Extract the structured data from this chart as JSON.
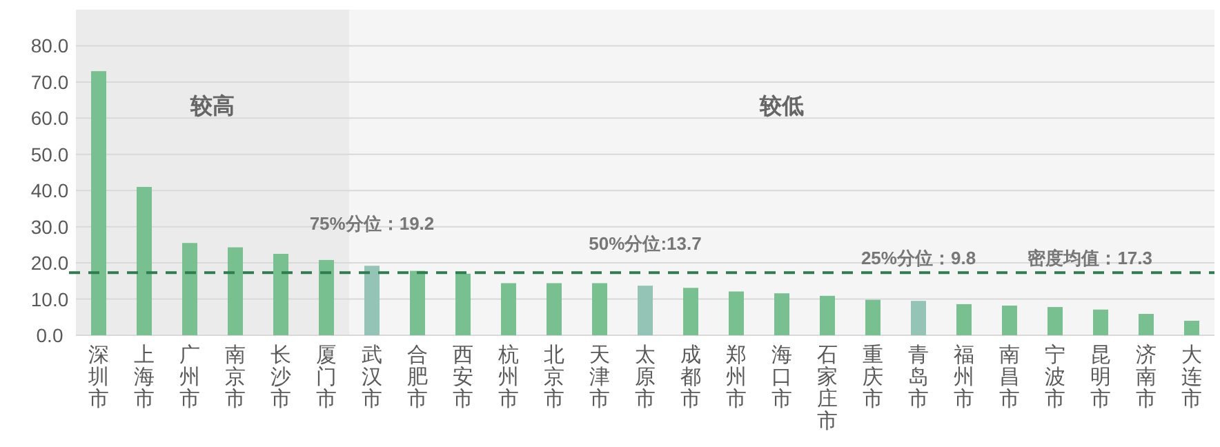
{
  "chart_data": {
    "type": "bar",
    "categories": [
      "深圳市",
      "上海市",
      "广州市",
      "南京市",
      "长沙市",
      "厦门市",
      "武汉市",
      "合肥市",
      "西安市",
      "杭州市",
      "北京市",
      "天津市",
      "太原市",
      "成都市",
      "郑州市",
      "海口市",
      "石家庄市",
      "重庆市",
      "青岛市",
      "福州市",
      "南昌市",
      "宁波市",
      "昆明市",
      "济南市",
      "大连市"
    ],
    "values": [
      73,
      41,
      25.5,
      24.3,
      22.5,
      20.8,
      19.2,
      17.8,
      17.0,
      14.4,
      14.4,
      14.4,
      13.7,
      13.1,
      12.1,
      11.6,
      10.9,
      9.8,
      9.5,
      8.6,
      8.2,
      7.8,
      7.1,
      5.9,
      4.0
    ],
    "colors": [
      "#78c08f",
      "#78c08f",
      "#78c08f",
      "#78c08f",
      "#78c08f",
      "#78c08f",
      "#93c4b5",
      "#78c08f",
      "#78c08f",
      "#78c08f",
      "#78c08f",
      "#78c08f",
      "#93c4b5",
      "#78c08f",
      "#78c08f",
      "#78c08f",
      "#78c08f",
      "#78c08f",
      "#93c4b5",
      "#78c08f",
      "#78c08f",
      "#78c08f",
      "#78c08f",
      "#78c08f",
      "#78c08f"
    ],
    "ylim": [
      0,
      90
    ],
    "yticks": [
      {
        "value": 0,
        "label": "0.0"
      },
      {
        "value": 10,
        "label": "10.0"
      },
      {
        "value": 20,
        "label": "20.0"
      },
      {
        "value": 30,
        "label": "30.0"
      },
      {
        "value": 40,
        "label": "40.0"
      },
      {
        "value": 50,
        "label": "50.0"
      },
      {
        "value": 60,
        "label": "60.0"
      },
      {
        "value": 70,
        "label": "70.0"
      },
      {
        "value": 80,
        "label": "80.0"
      }
    ],
    "grid": "y",
    "bands": [
      {
        "axis": "x",
        "from": "深圳市",
        "to": "厦门市",
        "label": "较高",
        "color": "#ebebeb"
      },
      {
        "axis": "x",
        "from": "武汉市",
        "to": "大连市",
        "label": "较低",
        "color": "#f5f5f5"
      }
    ],
    "ref_lines": [
      {
        "axis": "y",
        "value": 17.3,
        "label": "密度均值：17.3",
        "color": "#2e7d4f",
        "line_style": "dashed"
      }
    ],
    "annotations": [
      {
        "text": "75%分位：19.2",
        "x": "武汉市",
        "y": 19.2
      },
      {
        "text": "50%分位:13.7",
        "x": "太原市",
        "y": 13.7
      },
      {
        "text": "25%分位：9.8",
        "x": "青岛市",
        "y": 9.8
      }
    ]
  }
}
